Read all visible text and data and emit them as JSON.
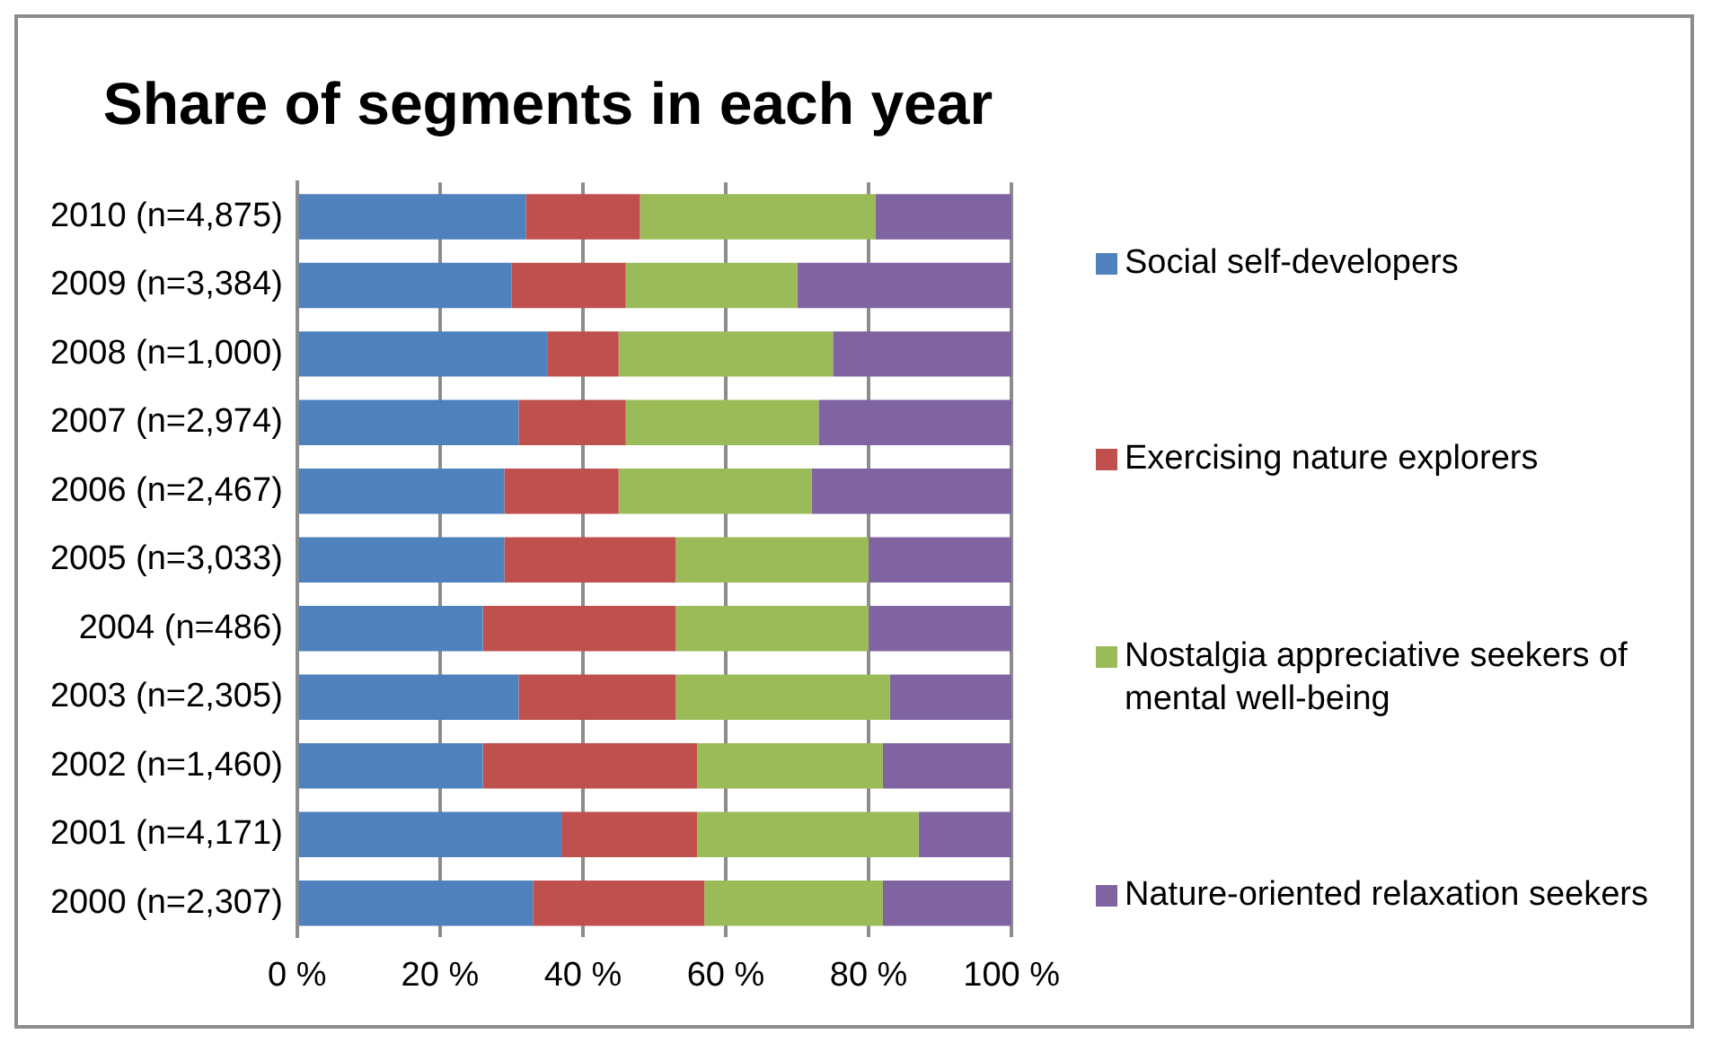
{
  "chart_data": {
    "type": "bar",
    "title": "Share of segments in each year",
    "orientation": "horizontal",
    "stacked": true,
    "categories": [
      "2010 (n=4,875)",
      "2009 (n=3,384)",
      "2008 (n=1,000)",
      "2007 (n=2,974)",
      "2006 (n=2,467)",
      "2005 (n=3,033)",
      "2004 (n=486)",
      "2003 (n=2,305)",
      "2002 (n=1,460)",
      "2001 (n=4,171)",
      "2000 (n=2,307)"
    ],
    "series": [
      {
        "name": "Social self-developers",
        "color": "#4f81bd",
        "values": [
          32,
          30,
          35,
          31,
          29,
          29,
          26,
          31,
          26,
          37,
          33
        ]
      },
      {
        "name": "Exercising nature explorers",
        "color": "#c0504d",
        "values": [
          16,
          16,
          10,
          15,
          16,
          24,
          27,
          22,
          30,
          19,
          24
        ]
      },
      {
        "name": "Nostalgia appreciative seekers of mental well-being",
        "color": "#9bbb59",
        "values": [
          33,
          24,
          30,
          27,
          27,
          27,
          27,
          30,
          26,
          31,
          25
        ]
      },
      {
        "name": "Nature-oriented relaxation seekers",
        "color": "#8064a2",
        "values": [
          19,
          30,
          25,
          27,
          28,
          20,
          20,
          17,
          18,
          13,
          18
        ]
      }
    ],
    "xlim": [
      0,
      100
    ],
    "xticks": [
      {
        "value": 0,
        "label": "0 %"
      },
      {
        "value": 20,
        "label": "20 %"
      },
      {
        "value": 40,
        "label": "40 %"
      },
      {
        "value": 60,
        "label": "60 %"
      },
      {
        "value": 80,
        "label": "80 %"
      },
      {
        "value": 100,
        "label": "100 %"
      }
    ],
    "grid": "x",
    "legend": "right"
  }
}
